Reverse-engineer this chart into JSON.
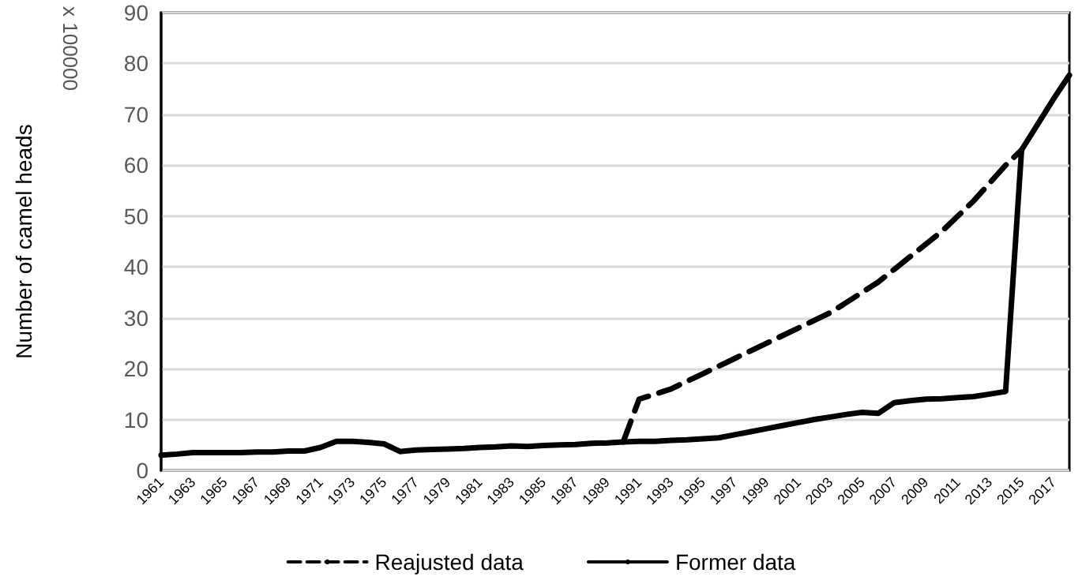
{
  "chart_data": {
    "type": "line",
    "ylabel": "Number of camel heads",
    "annotations": [
      "x 100000"
    ],
    "categories": [
      "1961",
      null,
      "1963",
      null,
      "1965",
      null,
      "1967",
      null,
      "1969",
      null,
      "1971",
      null,
      "1973",
      null,
      "1975",
      null,
      "1977",
      null,
      "1979",
      null,
      "1981",
      null,
      "1983",
      null,
      "1985",
      null,
      "1987",
      null,
      "1989",
      null,
      "1991",
      null,
      "1993",
      null,
      "1995",
      null,
      "1997",
      null,
      "1999",
      null,
      "2001",
      null,
      "2003",
      null,
      "2005",
      null,
      "2007",
      null,
      "2009",
      null,
      "2011",
      null,
      "2013",
      null,
      "2015",
      null,
      "2017",
      null
    ],
    "series": [
      {
        "name": "Reajusted data",
        "color": "#000000",
        "line_style": "dashed",
        "values": [
          null,
          null,
          null,
          null,
          null,
          null,
          null,
          null,
          null,
          null,
          null,
          null,
          null,
          null,
          null,
          null,
          null,
          null,
          null,
          null,
          null,
          null,
          null,
          null,
          null,
          null,
          null,
          null,
          null,
          5.6,
          14,
          15,
          16,
          17.5,
          19,
          20.5,
          22,
          23.5,
          25,
          26.5,
          28,
          29.5,
          31,
          33,
          35,
          37,
          39.5,
          42,
          44.5,
          47,
          50,
          53,
          56.5,
          60,
          63,
          null,
          null,
          null
        ]
      },
      {
        "name": "Former data",
        "color": "#000000",
        "line_style": "solid",
        "values": [
          3.0,
          3.2,
          3.5,
          3.5,
          3.5,
          3.5,
          3.6,
          3.6,
          3.8,
          3.8,
          4.5,
          5.7,
          5.7,
          5.5,
          5.2,
          3.7,
          4.0,
          4.1,
          4.2,
          4.3,
          4.5,
          4.6,
          4.8,
          4.7,
          4.9,
          5.0,
          5.1,
          5.3,
          5.4,
          5.6,
          5.7,
          5.7,
          5.9,
          6.0,
          6.2,
          6.4,
          7.0,
          7.6,
          8.2,
          8.8,
          9.4,
          10.0,
          10.5,
          11.0,
          11.4,
          11.2,
          13.3,
          13.7,
          14.0,
          14.1,
          14.3,
          14.5,
          15.0,
          15.5,
          63,
          68,
          73,
          77.7
        ]
      }
    ],
    "ylim": [
      0,
      90
    ],
    "yticks": [
      0,
      10,
      20,
      30,
      40,
      50,
      60,
      70,
      80,
      90
    ],
    "grid": "y",
    "legend": "bottom",
    "marker": "none"
  }
}
